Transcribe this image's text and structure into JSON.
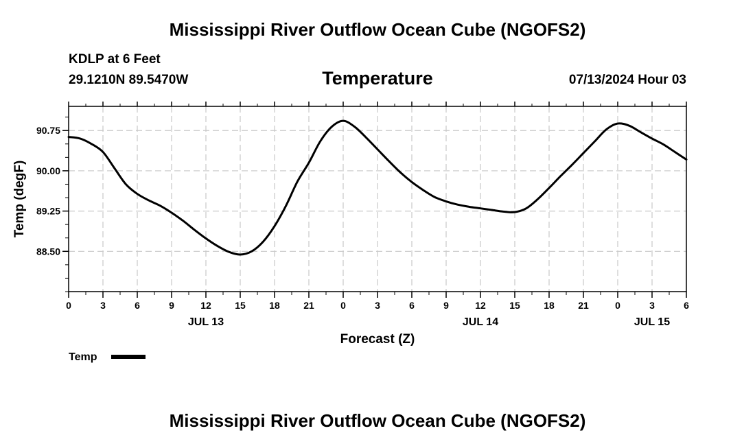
{
  "header": {
    "main_title": "Mississippi River Outflow Ocean Cube (NGOFS2)",
    "station": "KDLP at 6 Feet",
    "coords": "29.1210N  89.5470W",
    "subtitle": "Temperature",
    "datetime": "07/13/2024 Hour 03"
  },
  "footer": {
    "title": "Mississippi River Outflow Ocean Cube (NGOFS2)"
  },
  "chart_data": {
    "type": "line",
    "title": "Temperature",
    "xlabel": "Forecast (Z)",
    "ylabel": "Temp (degF)",
    "xlim": [
      0,
      54
    ],
    "ylim": [
      87.75,
      91.2
    ],
    "x_tick_values": [
      0,
      3,
      6,
      9,
      12,
      15,
      18,
      21,
      24,
      27,
      30,
      33,
      36,
      39,
      42,
      45,
      48,
      51,
      54
    ],
    "x_tick_labels": [
      "0",
      "3",
      "6",
      "9",
      "12",
      "15",
      "18",
      "21",
      "0",
      "3",
      "6",
      "9",
      "12",
      "15",
      "18",
      "21",
      "0",
      "3",
      "6"
    ],
    "x_minor_step": 1.5,
    "y_ticks": [
      88.5,
      89.25,
      90.0,
      90.75
    ],
    "y_tick_labels": [
      "88.50",
      "89.25",
      "90.00",
      "90.75"
    ],
    "y_minor_step": 0.25,
    "date_labels": [
      {
        "x": 12,
        "label": "JUL 13"
      },
      {
        "x": 36,
        "label": "JUL 14"
      },
      {
        "x": 51,
        "label": "JUL 15"
      }
    ],
    "grid": true,
    "legend": [
      {
        "name": "Temp",
        "position": "bottom-left"
      }
    ],
    "series": [
      {
        "name": "Temp",
        "color": "#000000",
        "x": [
          0,
          1,
          2,
          3,
          4,
          5,
          6,
          7,
          8,
          9,
          10,
          11,
          12,
          13,
          14,
          15,
          16,
          17,
          18,
          19,
          20,
          21,
          22,
          23,
          24,
          25,
          26,
          27,
          28,
          29,
          30,
          31,
          32,
          33,
          34,
          35,
          36,
          37,
          38,
          39,
          40,
          41,
          42,
          43,
          44,
          45,
          46,
          47,
          48,
          49,
          50,
          51,
          52,
          53,
          54
        ],
        "values": [
          90.63,
          90.6,
          90.5,
          90.35,
          90.05,
          89.75,
          89.57,
          89.45,
          89.35,
          89.22,
          89.07,
          88.9,
          88.74,
          88.6,
          88.49,
          88.44,
          88.5,
          88.68,
          88.97,
          89.35,
          89.8,
          90.15,
          90.55,
          90.82,
          90.93,
          90.82,
          90.62,
          90.4,
          90.18,
          89.97,
          89.79,
          89.64,
          89.51,
          89.43,
          89.37,
          89.33,
          89.3,
          89.27,
          89.24,
          89.23,
          89.3,
          89.47,
          89.68,
          89.9,
          90.11,
          90.33,
          90.55,
          90.77,
          90.88,
          90.84,
          90.72,
          90.6,
          90.49,
          90.35,
          90.21
        ]
      }
    ]
  }
}
